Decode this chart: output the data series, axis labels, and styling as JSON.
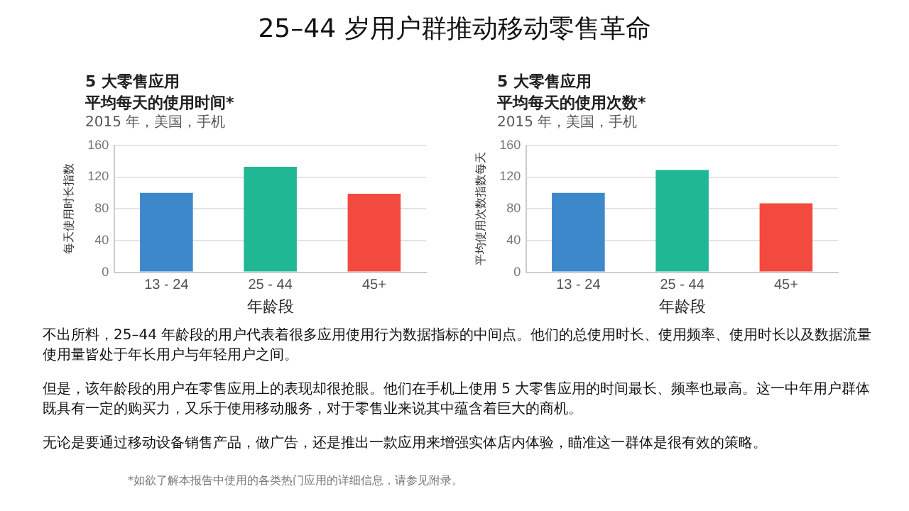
{
  "chart_data": [
    {
      "type": "other",
      "title": "25–44 岁用户群推动移动零售革命"
    },
    {
      "type": "bar",
      "title": "5 大零售应用",
      "subtitle": "平均每天的使用时间*",
      "annotations": [
        "2015 年，美国，手机"
      ],
      "xlabel": "年龄段",
      "ylabel": "每天使用时长指数",
      "categories": [
        "13 - 24",
        "25 - 44",
        "45+"
      ],
      "values": [
        100,
        133,
        99
      ],
      "colors": [
        "#3d87cb",
        "#20b795",
        "#f24a3e"
      ],
      "ylim": [
        0,
        160
      ],
      "yticks": [
        0,
        40,
        80,
        120,
        160
      ],
      "grid": "y"
    },
    {
      "type": "bar",
      "title": "5 大零售应用",
      "subtitle": "平均每天的使用次数*",
      "annotations": [
        "2015 年，美国，手机"
      ],
      "xlabel": "年龄段",
      "ylabel": "平均使用次数指数每天",
      "categories": [
        "13 - 24",
        "25 - 44",
        "45+"
      ],
      "values": [
        100,
        129,
        87
      ],
      "colors": [
        "#3d87cb",
        "#20b795",
        "#f24a3e"
      ],
      "ylim": [
        0,
        160
      ],
      "yticks": [
        0,
        40,
        80,
        120,
        160
      ],
      "grid": "y"
    },
    {
      "type": "other",
      "annotations": [
        "不出所料，25–44 年龄段的用户代表着很多应用使用行为数据指标的中间点。他们的总使用时长、使用频率、使用时长以及数据流量使用量皆处于年长用户与年轻用户之间。",
        "但是，该年龄段的用户在零售应用上的表现却很抢眼。他们在手机上使用 5 大零售应用的时间最长、频率也最高。这一中年用户群体既具有一定的购买力，又乐于使用移动服务，对于零售业来说其中蕴含着巨大的商机。",
        "无论是要通过移动设备销售产品，做广告，还是推出一款应用来增强实体店内体验，瞄准这一群体是很有效的策略。",
        "*如欲了解本报告中使用的各类热门应用的详细信息，请参见附录。"
      ]
    }
  ]
}
